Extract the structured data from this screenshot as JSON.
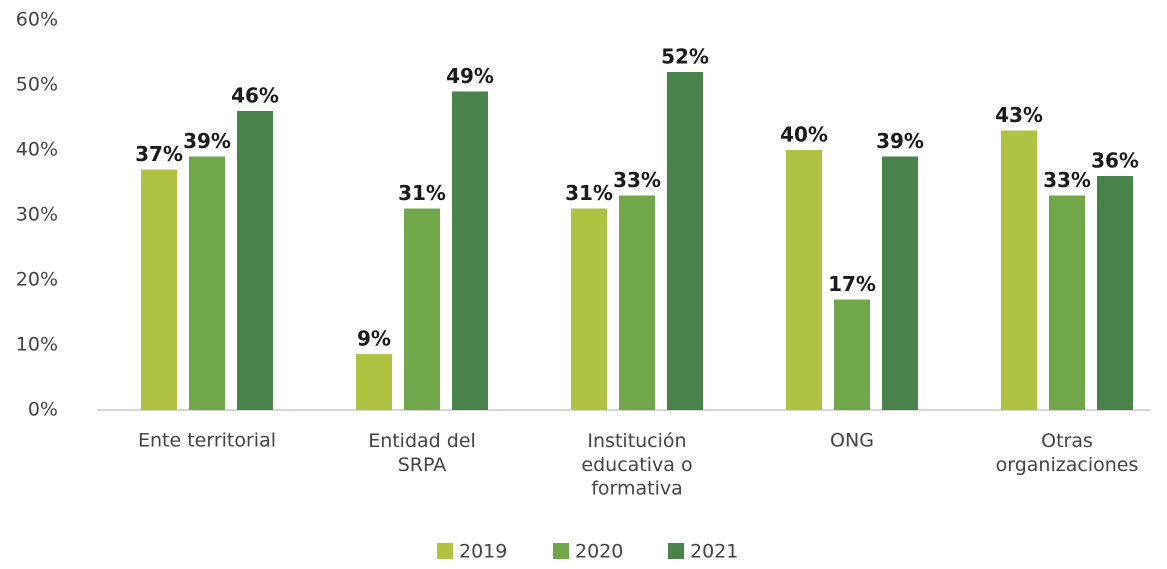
{
  "chart_data": {
    "type": "bar",
    "categories": [
      "Ente territorial",
      "Entidad del\nSRPA",
      "Institución\neducativa o\nformativa",
      "ONG",
      "Otras\norganizaciones"
    ],
    "series": [
      {
        "name": "2019",
        "color": "#b0c241",
        "values": [
          37,
          8.6,
          31,
          40,
          43
        ],
        "value_labels": [
          "37%",
          "9%",
          "31%",
          "40%",
          "43%"
        ]
      },
      {
        "name": "2020",
        "color": "#70a74b",
        "values": [
          39,
          31,
          33,
          17,
          33
        ],
        "value_labels": [
          "39%",
          "31%",
          "33%",
          "17%",
          "33%"
        ]
      },
      {
        "name": "2021",
        "color": "#4a8349",
        "values": [
          46,
          49,
          52,
          39,
          36
        ],
        "value_labels": [
          "46%",
          "49%",
          "52%",
          "39%",
          "36%"
        ]
      }
    ],
    "ylim": [
      0,
      60
    ],
    "yticks": [
      {
        "value": 0,
        "label": "0%"
      },
      {
        "value": 10,
        "label": "10%"
      },
      {
        "value": 20,
        "label": "20%"
      },
      {
        "value": 30,
        "label": "30%"
      },
      {
        "value": 40,
        "label": "40%"
      },
      {
        "value": 50,
        "label": "50%"
      },
      {
        "value": 60,
        "label": "60%"
      }
    ],
    "grid": false,
    "legend": "bottom"
  }
}
